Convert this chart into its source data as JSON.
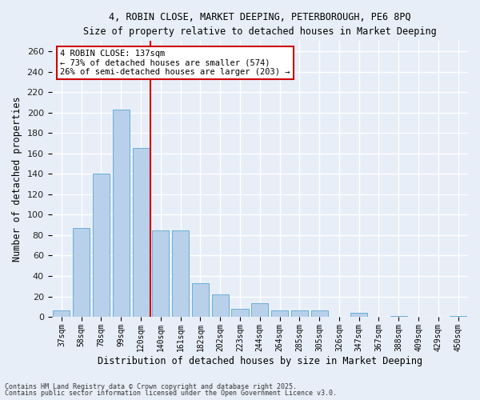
{
  "title_line1": "4, ROBIN CLOSE, MARKET DEEPING, PETERBOROUGH, PE6 8PQ",
  "title_line2": "Size of property relative to detached houses in Market Deeping",
  "xlabel": "Distribution of detached houses by size in Market Deeping",
  "ylabel": "Number of detached properties",
  "categories": [
    "37sqm",
    "58sqm",
    "78sqm",
    "99sqm",
    "120sqm",
    "140sqm",
    "161sqm",
    "182sqm",
    "202sqm",
    "223sqm",
    "244sqm",
    "264sqm",
    "285sqm",
    "305sqm",
    "326sqm",
    "347sqm",
    "367sqm",
    "388sqm",
    "409sqm",
    "429sqm",
    "450sqm"
  ],
  "values": [
    6,
    87,
    140,
    203,
    165,
    85,
    85,
    33,
    22,
    8,
    13,
    6,
    6,
    6,
    0,
    4,
    0,
    1,
    0,
    0,
    1
  ],
  "bar_color": "#b8d0ea",
  "bar_edge_color": "#6aaed6",
  "vline_x_index": 4.5,
  "vline_color": "#cc0000",
  "annotation_text": "4 ROBIN CLOSE: 137sqm\n← 73% of detached houses are smaller (574)\n26% of semi-detached houses are larger (203) →",
  "annotation_box_color": "#ffffff",
  "annotation_box_edge_color": "#cc0000",
  "ylim": [
    0,
    270
  ],
  "yticks": [
    0,
    20,
    40,
    60,
    80,
    100,
    120,
    140,
    160,
    180,
    200,
    220,
    240,
    260
  ],
  "footnote1": "Contains HM Land Registry data © Crown copyright and database right 2025.",
  "footnote2": "Contains public sector information licensed under the Open Government Licence v3.0.",
  "background_color": "#e8eef8",
  "grid_color": "#ffffff"
}
